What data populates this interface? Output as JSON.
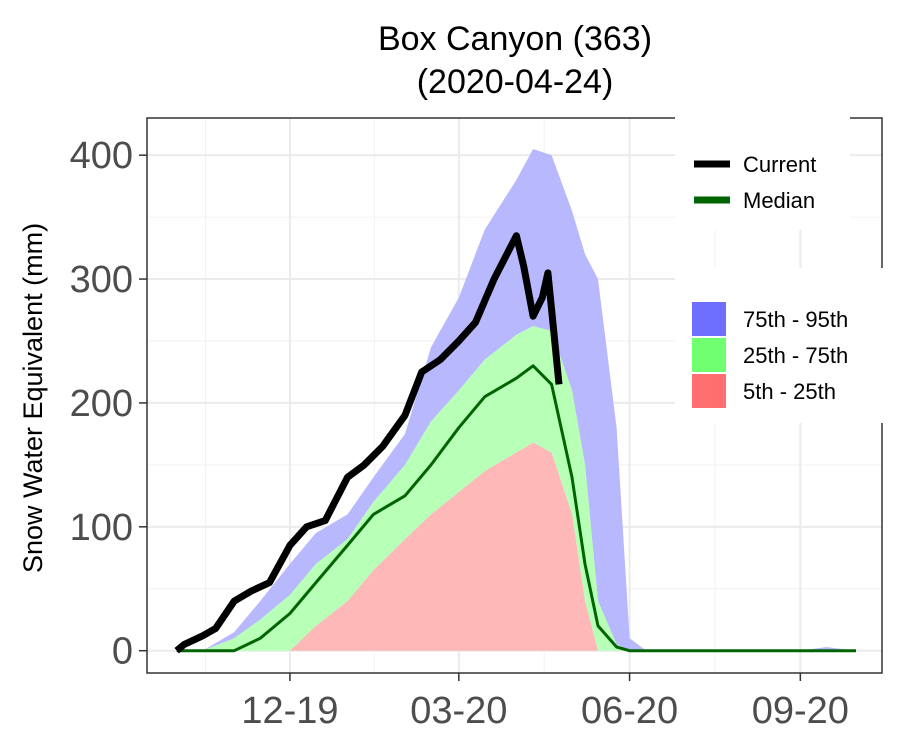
{
  "chart_data": {
    "type": "area",
    "title_line1": "Box Canyon (363)",
    "title_line2": "(2020-04-24)",
    "xlabel": "",
    "ylabel": "Snow Water Equivalent (mm)",
    "ylim": [
      -18,
      430
    ],
    "yticks": [
      0,
      100,
      200,
      300,
      400
    ],
    "xlim": [
      "2019-09-15",
      "2020-10-15"
    ],
    "xticks": [
      {
        "date": "2019-12-01",
        "label": "12-19"
      },
      {
        "date": "2020-03-01",
        "label": "03-20"
      },
      {
        "date": "2020-06-01",
        "label": "06-20"
      },
      {
        "date": "2020-09-01",
        "label": "09-20"
      }
    ],
    "grid": true,
    "legend_placement": "right",
    "legend_lines": [
      {
        "name": "Current",
        "color": "#000000"
      },
      {
        "name": "Median",
        "color": "#006400"
      }
    ],
    "legend_bands": [
      {
        "name": "75th - 95th",
        "color": "#6f6fff"
      },
      {
        "name": "25th - 75th",
        "color": "#6fff6f"
      },
      {
        "name": "5th - 25th",
        "color": "#ff6f6f"
      }
    ],
    "colors": {
      "band_75_95": "#b8b8ff",
      "band_25_75": "#b8ffb8",
      "band_5_25": "#ffb8b8",
      "current": "#000000",
      "median": "#006400"
    },
    "percentiles": {
      "x": [
        "2019-10-01",
        "2019-10-15",
        "2019-11-01",
        "2019-11-15",
        "2019-12-01",
        "2019-12-15",
        "2020-01-01",
        "2020-01-15",
        "2020-02-01",
        "2020-02-15",
        "2020-03-01",
        "2020-03-15",
        "2020-04-01",
        "2020-04-10",
        "2020-04-20",
        "2020-05-01",
        "2020-05-08",
        "2020-05-15",
        "2020-05-25",
        "2020-06-01",
        "2020-06-10",
        "2020-07-01",
        "2020-08-01",
        "2020-09-01",
        "2020-09-15",
        "2020-10-01"
      ],
      "p5": [
        0,
        0,
        0,
        0,
        0,
        20,
        40,
        65,
        90,
        110,
        128,
        145,
        160,
        168,
        160,
        110,
        40,
        0,
        0,
        0,
        0,
        0,
        0,
        0,
        0,
        0
      ],
      "p25": [
        0,
        0,
        0,
        0,
        0,
        20,
        40,
        65,
        90,
        110,
        128,
        145,
        160,
        168,
        160,
        110,
        40,
        0,
        0,
        0,
        0,
        0,
        0,
        0,
        0,
        0
      ],
      "p75": [
        0,
        0,
        10,
        25,
        45,
        70,
        90,
        120,
        150,
        185,
        210,
        235,
        255,
        262,
        258,
        210,
        150,
        40,
        5,
        0,
        0,
        0,
        0,
        0,
        0,
        0
      ],
      "p95": [
        0,
        0,
        15,
        40,
        70,
        95,
        110,
        140,
        175,
        245,
        285,
        340,
        380,
        405,
        400,
        355,
        320,
        300,
        180,
        10,
        0,
        0,
        0,
        0,
        3,
        0
      ],
      "median": [
        0,
        0,
        0,
        10,
        30,
        55,
        85,
        110,
        125,
        150,
        180,
        205,
        220,
        230,
        215,
        140,
        70,
        20,
        3,
        0,
        0,
        0,
        0,
        0,
        0,
        0
      ]
    },
    "current": {
      "x": [
        "2019-10-01",
        "2019-10-05",
        "2019-10-15",
        "2019-10-22",
        "2019-11-01",
        "2019-11-10",
        "2019-11-20",
        "2019-12-01",
        "2019-12-10",
        "2019-12-20",
        "2020-01-01",
        "2020-01-10",
        "2020-01-20",
        "2020-02-01",
        "2020-02-10",
        "2020-02-20",
        "2020-03-01",
        "2020-03-10",
        "2020-03-20",
        "2020-04-01",
        "2020-04-05",
        "2020-04-10",
        "2020-04-15",
        "2020-04-18",
        "2020-04-21",
        "2020-04-24"
      ],
      "values": [
        0,
        5,
        12,
        18,
        40,
        48,
        55,
        85,
        100,
        105,
        140,
        150,
        165,
        190,
        225,
        235,
        250,
        265,
        300,
        335,
        310,
        270,
        285,
        305,
        260,
        215
      ]
    }
  }
}
